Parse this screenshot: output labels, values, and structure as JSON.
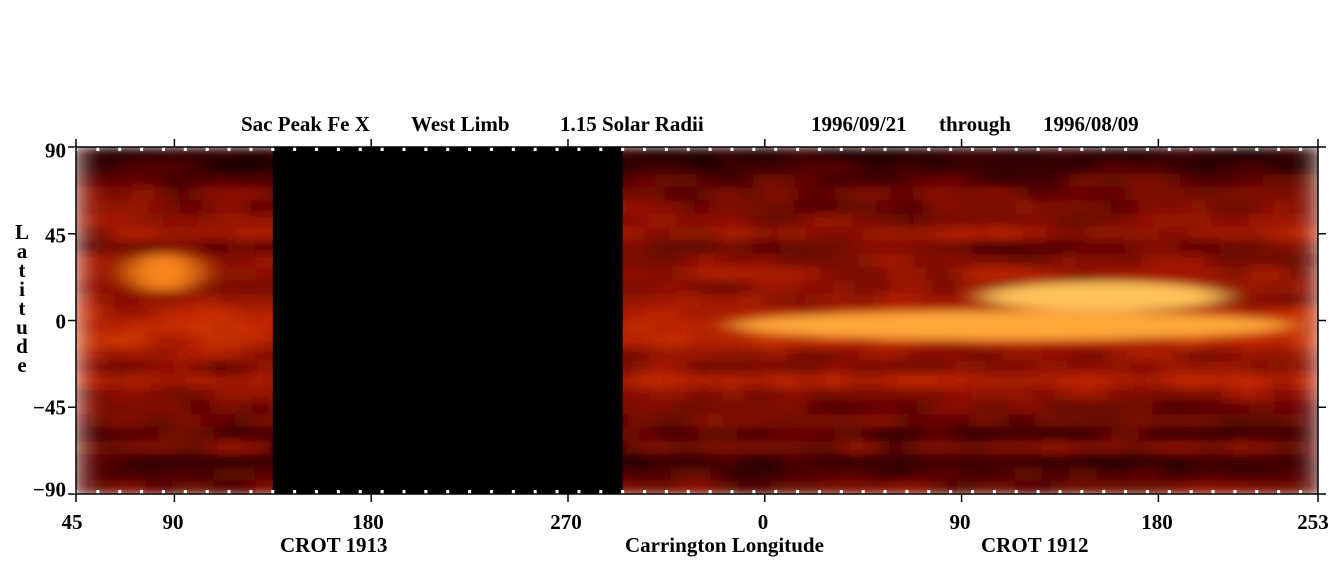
{
  "chart_data": {
    "type": "heatmap",
    "title": {
      "instrument": "Sac Peak Fe X",
      "limb": "West Limb",
      "radius": "1.15 Solar Radii",
      "date_start": "1996/09/21",
      "through": "through",
      "date_end": "1996/08/09"
    },
    "xlabel": "Carrington Longitude",
    "ylabel": "Latitude",
    "rotation_labels": [
      "CROT 1913",
      "CROT 1912"
    ],
    "x_tick_labels": [
      "45",
      "90",
      "180",
      "270",
      "0",
      "90",
      "180",
      "253"
    ],
    "y_tick_labels": [
      "90",
      "45",
      "0",
      "−45",
      "−90"
    ],
    "ylim": [
      -90,
      90
    ],
    "x_segments": [
      {
        "rotation": "CROT 1913",
        "from_longitude": 45,
        "to_longitude": 360
      },
      {
        "rotation": "CROT 1912",
        "from_longitude": 0,
        "to_longitude": 253
      }
    ],
    "data_gap": {
      "rotation": "CROT 1913",
      "from_longitude": 135,
      "to_longitude": 295
    },
    "bright_regions": [
      {
        "rotation": "CROT 1912",
        "longitude_range": [
          100,
          210
        ],
        "latitude_range": [
          5,
          20
        ],
        "intensity": 1.0
      },
      {
        "rotation": "CROT 1912",
        "longitude_range": [
          -15,
          240
        ],
        "latitude_range": [
          -10,
          5
        ],
        "intensity": 0.75
      },
      {
        "rotation": "CROT 1913",
        "longitude_range": [
          70,
          100
        ],
        "latitude_range": [
          15,
          35
        ],
        "intensity": 0.5
      }
    ],
    "colormap": [
      "#000000",
      "#3a0000",
      "#8a0e00",
      "#c82800",
      "#e85a0a",
      "#ff9a2a",
      "#ffc25a"
    ],
    "grid": false,
    "legend": "none"
  }
}
